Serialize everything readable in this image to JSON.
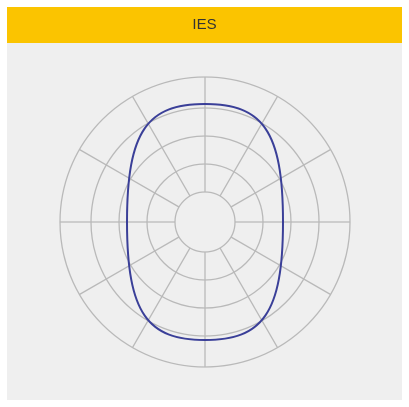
{
  "header": {
    "title": "IES"
  }
}
